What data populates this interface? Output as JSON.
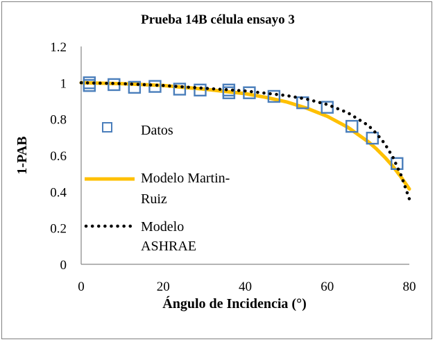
{
  "chart_data": {
    "type": "scatter",
    "title": "Prueba 14B célula ensayo 3",
    "xlabel": "Ángulo de Incidencia (°)",
    "ylabel": "1-PAB",
    "xlim": [
      0,
      80
    ],
    "ylim": [
      0,
      1.2
    ],
    "xticks": [
      0,
      20,
      40,
      60,
      80
    ],
    "yticks": [
      0,
      0.2,
      0.4,
      0.6,
      0.8,
      1,
      1.2
    ],
    "xtick_labels": [
      "0",
      "20",
      "40",
      "60",
      "80"
    ],
    "ytick_labels": [
      "0",
      "0.2",
      "0.4",
      "0.6",
      "0.8",
      "1",
      "1.2"
    ],
    "grid": false,
    "series": [
      {
        "name": "Datos",
        "kind": "markers",
        "marker": "open-square",
        "color": "#4a7ebb",
        "x": [
          2,
          2,
          8,
          13,
          18,
          24,
          29,
          36,
          36,
          41,
          47,
          54,
          60,
          66,
          71,
          77
        ],
        "y": [
          0.985,
          1.0,
          0.99,
          0.975,
          0.98,
          0.965,
          0.96,
          0.945,
          0.96,
          0.945,
          0.925,
          0.89,
          0.865,
          0.76,
          0.695,
          0.555
        ]
      },
      {
        "name": "Modelo Martin-Ruiz",
        "kind": "line",
        "color": "#ffc000",
        "x": [
          0,
          10,
          20,
          30,
          40,
          45,
          50,
          55,
          60,
          65,
          70,
          72,
          74,
          76,
          78,
          80
        ],
        "y": [
          1.0,
          0.995,
          0.985,
          0.965,
          0.94,
          0.92,
          0.895,
          0.86,
          0.815,
          0.755,
          0.675,
          0.635,
          0.59,
          0.54,
          0.48,
          0.415
        ]
      },
      {
        "name": "Modelo ASHRAE",
        "kind": "dotted-line",
        "color": "#000000",
        "x": [
          0,
          10,
          20,
          30,
          40,
          50,
          55,
          60,
          65,
          70,
          72,
          74,
          76,
          78,
          80
        ],
        "y": [
          1.0,
          0.995,
          0.985,
          0.97,
          0.955,
          0.93,
          0.91,
          0.88,
          0.835,
          0.765,
          0.72,
          0.665,
          0.59,
          0.49,
          0.36
        ]
      }
    ],
    "legend": {
      "placement": "left-inside",
      "entries": [
        {
          "lines": [
            "Datos"
          ]
        },
        {
          "lines": [
            "Modelo Martin-",
            "Ruiz"
          ]
        },
        {
          "lines": [
            "Modelo",
            "ASHRAE"
          ]
        }
      ]
    }
  }
}
